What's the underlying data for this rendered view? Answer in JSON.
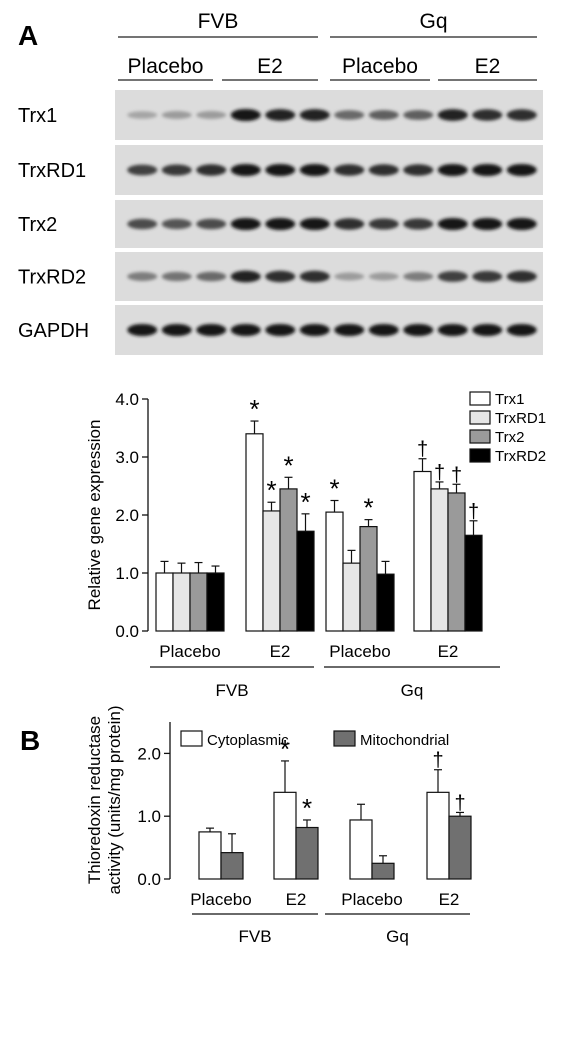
{
  "panels": {
    "a_label": "A",
    "b_label": "B"
  },
  "blot": {
    "groups": [
      {
        "name": "FVB",
        "subgroups": [
          "Placebo",
          "E2"
        ]
      },
      {
        "name": "Gq",
        "subgroups": [
          "Placebo",
          "E2"
        ]
      }
    ],
    "rows": [
      {
        "label": "Trx1",
        "intensity": [
          0.25,
          0.3,
          0.3,
          0.95,
          0.9,
          0.9,
          0.55,
          0.6,
          0.6,
          0.9,
          0.85,
          0.85
        ]
      },
      {
        "label": "TrxRD1",
        "intensity": [
          0.75,
          0.8,
          0.85,
          0.95,
          0.95,
          0.95,
          0.85,
          0.85,
          0.85,
          0.95,
          0.95,
          0.95
        ]
      },
      {
        "label": "Trx2",
        "intensity": [
          0.7,
          0.65,
          0.7,
          0.95,
          0.95,
          0.95,
          0.85,
          0.8,
          0.8,
          0.95,
          0.95,
          0.95
        ]
      },
      {
        "label": "TrxRD2",
        "intensity": [
          0.45,
          0.5,
          0.55,
          0.9,
          0.85,
          0.85,
          0.3,
          0.3,
          0.45,
          0.75,
          0.8,
          0.85
        ]
      },
      {
        "label": "GAPDH",
        "intensity": [
          0.95,
          0.95,
          0.95,
          0.95,
          0.95,
          0.95,
          0.95,
          0.95,
          0.95,
          0.95,
          0.95,
          0.95
        ]
      }
    ]
  },
  "chart_data": [
    {
      "type": "bar",
      "ylabel": "Relative gene expression",
      "ylim": [
        0,
        4
      ],
      "yticks": [
        "0.0",
        "1.0",
        "2.0",
        "3.0",
        "4.0"
      ],
      "groups": [
        "FVB",
        "Gq"
      ],
      "categories": [
        "Placebo",
        "E2",
        "Placebo",
        "E2"
      ],
      "legend_position": "top-right",
      "series": [
        {
          "name": "Trx1",
          "color": "#ffffff",
          "values": [
            1.0,
            3.4,
            2.05,
            2.75
          ],
          "errors": [
            0.2,
            0.22,
            0.2,
            0.22
          ],
          "marks": [
            "",
            "*",
            "*",
            "†"
          ]
        },
        {
          "name": "TrxRD1",
          "color": "#e6e6e6",
          "values": [
            1.0,
            2.07,
            1.17,
            2.45
          ],
          "errors": [
            0.17,
            0.15,
            0.22,
            0.12
          ],
          "marks": [
            "",
            "*",
            "",
            "†"
          ]
        },
        {
          "name": "Trx2",
          "color": "#9a9a9a",
          "values": [
            1.0,
            2.45,
            1.8,
            2.38
          ],
          "errors": [
            0.18,
            0.2,
            0.12,
            0.15
          ],
          "marks": [
            "",
            "*",
            "*",
            "†"
          ]
        },
        {
          "name": "TrxRD2",
          "color": "#000000",
          "values": [
            1.0,
            1.72,
            0.98,
            1.65
          ],
          "errors": [
            0.12,
            0.3,
            0.22,
            0.25
          ],
          "marks": [
            "",
            "*",
            "",
            "†"
          ]
        }
      ]
    },
    {
      "type": "bar",
      "ylabel_lines": [
        "Thioredoxin reductase",
        "activity (units/mg protein)"
      ],
      "ylim": [
        0,
        2.5
      ],
      "yticks": [
        "0.0",
        "1.0",
        "2.0"
      ],
      "groups": [
        "FVB",
        "Gq"
      ],
      "categories": [
        "Placebo",
        "E2",
        "Placebo",
        "E2"
      ],
      "legend_position": "top",
      "series": [
        {
          "name": "Cytoplasmic",
          "color": "#ffffff",
          "values": [
            0.75,
            1.38,
            0.94,
            1.38
          ],
          "errors": [
            0.06,
            0.5,
            0.25,
            0.36
          ],
          "marks": [
            "",
            "*",
            "",
            "†"
          ]
        },
        {
          "name": "Mitochondrial",
          "color": "#707070",
          "values": [
            0.42,
            0.82,
            0.25,
            1.0
          ],
          "errors": [
            0.3,
            0.12,
            0.12,
            0.06
          ],
          "marks": [
            "",
            "*",
            "",
            "†"
          ]
        }
      ]
    }
  ]
}
